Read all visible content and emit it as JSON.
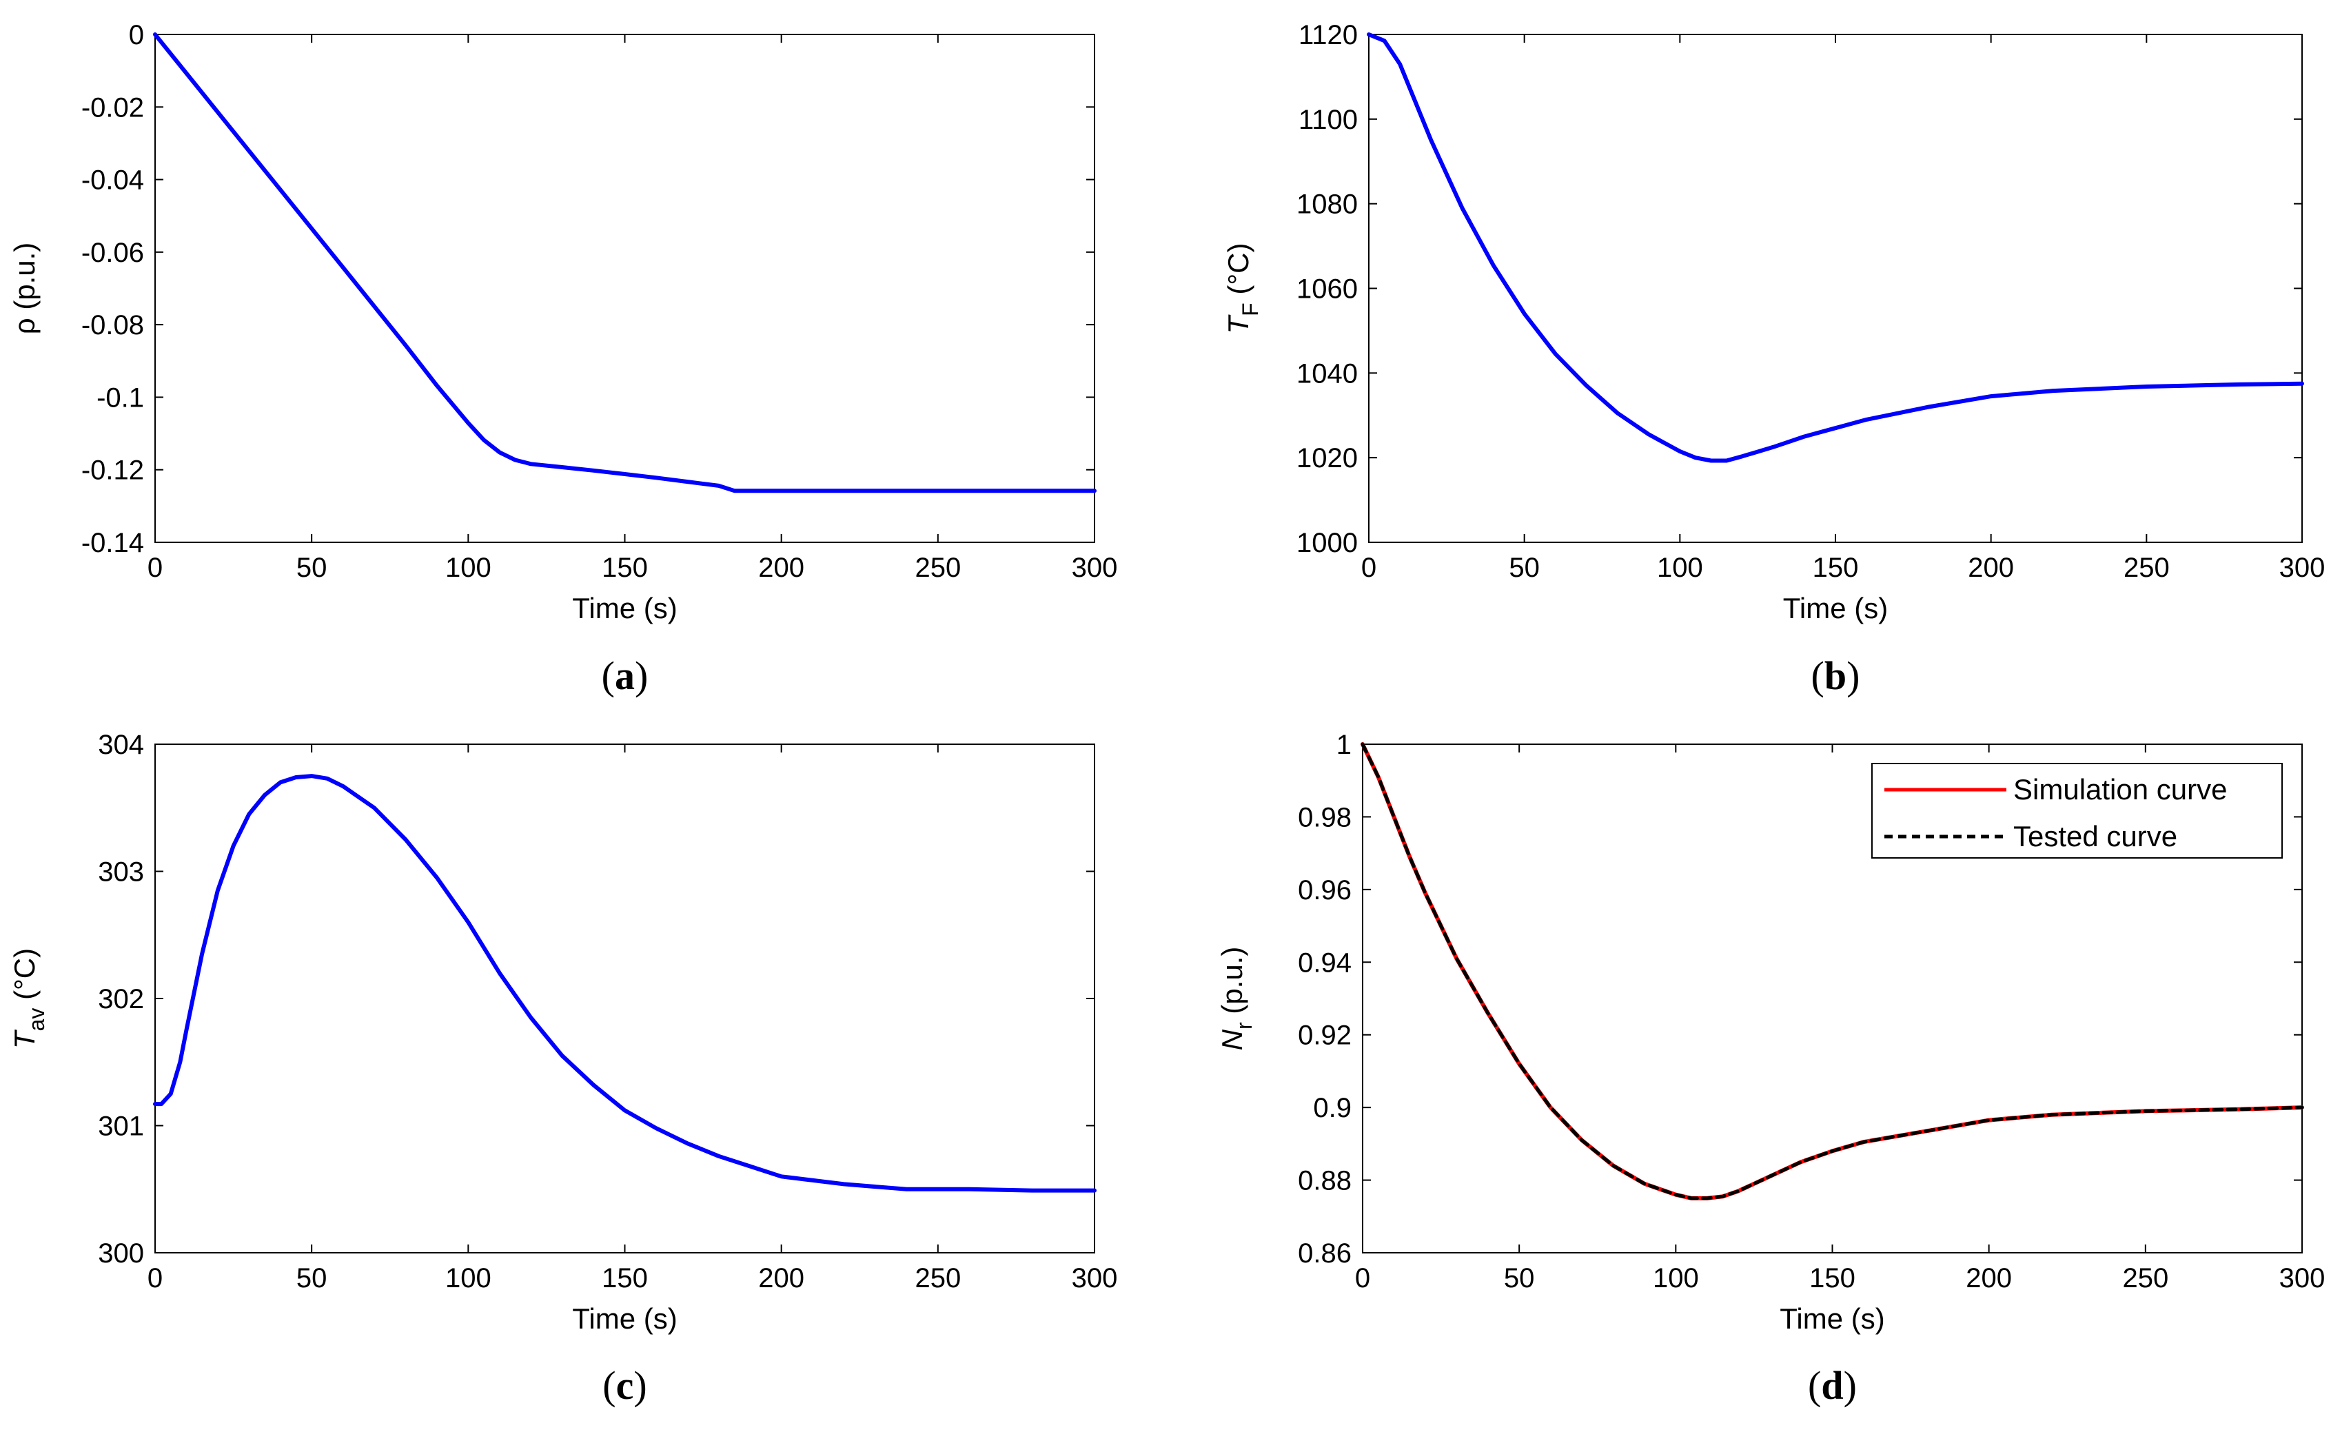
{
  "chart_data": [
    {
      "id": "a",
      "type": "line",
      "caption": "a",
      "xlabel": "Time (s)",
      "ylabel": "ρ (p.u.)",
      "xlim": [
        0,
        300
      ],
      "ylim": [
        -0.14,
        0
      ],
      "xticks": [
        "0",
        "50",
        "100",
        "150",
        "200",
        "250",
        "300"
      ],
      "yticks": [
        "0",
        "-0.02",
        "-0.04",
        "-0.06",
        "-0.08",
        "-0.1",
        "-0.12",
        "-0.14"
      ],
      "series": [
        {
          "name": "ρ",
          "color": "#0000ff",
          "style": "solid",
          "x": [
            0,
            20,
            40,
            60,
            80,
            90,
            100,
            105,
            110,
            115,
            120,
            130,
            140,
            150,
            160,
            170,
            180,
            185,
            200,
            250,
            300
          ],
          "y": [
            0,
            -0.0214,
            -0.0428,
            -0.0642,
            -0.0857,
            -0.0968,
            -0.1071,
            -0.1118,
            -0.1152,
            -0.1173,
            -0.1184,
            -0.1193,
            -0.1202,
            -0.1212,
            -0.1222,
            -0.1233,
            -0.1244,
            -0.1258,
            -0.1258,
            -0.1258,
            -0.1258
          ]
        }
      ]
    },
    {
      "id": "b",
      "type": "line",
      "caption": "b",
      "xlabel": "Time (s)",
      "ylabel": {
        "main": "T",
        "sub": "F",
        "unit": " (°C)"
      },
      "xlim": [
        0,
        300
      ],
      "ylim": [
        1000,
        1120
      ],
      "xticks": [
        "0",
        "50",
        "100",
        "150",
        "200",
        "250",
        "300"
      ],
      "yticks": [
        "1120",
        "1100",
        "1080",
        "1060",
        "1040",
        "1020",
        "1000"
      ],
      "series": [
        {
          "name": "TF",
          "color": "#0000ff",
          "style": "solid",
          "x": [
            0,
            5,
            10,
            15,
            20,
            30,
            40,
            50,
            60,
            70,
            80,
            90,
            100,
            105,
            110,
            115,
            120,
            130,
            140,
            150,
            160,
            180,
            200,
            220,
            250,
            280,
            300
          ],
          "y": [
            1120,
            1118.5,
            1113,
            1104,
            1095,
            1079,
            1065.5,
            1054,
            1044.5,
            1037,
            1030.5,
            1025.5,
            1021.5,
            1020,
            1019.3,
            1019.3,
            1020.3,
            1022.5,
            1025,
            1027,
            1029,
            1032,
            1034.5,
            1035.8,
            1036.8,
            1037.3,
            1037.5
          ]
        }
      ]
    },
    {
      "id": "c",
      "type": "line",
      "caption": "c",
      "xlabel": "Time (s)",
      "ylabel": {
        "main": "T",
        "sub": "av",
        "unit": " (°C)"
      },
      "xlim": [
        0,
        300
      ],
      "ylim": [
        300,
        304
      ],
      "xticks": [
        "0",
        "50",
        "100",
        "150",
        "200",
        "250",
        "300"
      ],
      "yticks": [
        "304",
        "303",
        "302",
        "301",
        "300"
      ],
      "series": [
        {
          "name": "Tav",
          "color": "#0000ff",
          "style": "solid",
          "x": [
            0,
            2,
            5,
            8,
            10,
            15,
            20,
            25,
            30,
            35,
            40,
            45,
            50,
            55,
            60,
            70,
            80,
            90,
            100,
            110,
            120,
            130,
            140,
            150,
            160,
            170,
            180,
            190,
            200,
            220,
            240,
            260,
            280,
            300
          ],
          "y": [
            301.17,
            301.17,
            301.25,
            301.5,
            301.75,
            302.35,
            302.85,
            303.2,
            303.45,
            303.6,
            303.7,
            303.74,
            303.75,
            303.73,
            303.67,
            303.5,
            303.25,
            302.95,
            302.6,
            302.2,
            301.85,
            301.55,
            301.32,
            301.12,
            300.98,
            300.86,
            300.76,
            300.68,
            300.6,
            300.54,
            300.5,
            300.5,
            300.49,
            300.49
          ]
        }
      ]
    },
    {
      "id": "d",
      "type": "line",
      "caption": "d",
      "xlabel": "Time (s)",
      "ylabel": {
        "main": "N",
        "sub": "r",
        "unit": " (p.u.)"
      },
      "xlim": [
        0,
        300
      ],
      "ylim": [
        0.86,
        1
      ],
      "xticks": [
        "0",
        "50",
        "100",
        "150",
        "200",
        "250",
        "300"
      ],
      "yticks": [
        "1",
        "0.98",
        "0.96",
        "0.94",
        "0.92",
        "0.9",
        "0.88",
        "0.86"
      ],
      "legend": [
        "Simulation curve",
        "Tested curve"
      ],
      "series": [
        {
          "name": "Simulation curve",
          "color": "#ff0000",
          "style": "solid",
          "x": [
            0,
            5,
            10,
            15,
            20,
            30,
            40,
            50,
            60,
            70,
            80,
            90,
            100,
            105,
            110,
            115,
            120,
            130,
            140,
            150,
            160,
            180,
            200,
            220,
            250,
            280,
            300
          ],
          "y": [
            1,
            0.991,
            0.98,
            0.969,
            0.959,
            0.941,
            0.926,
            0.912,
            0.9,
            0.891,
            0.884,
            0.879,
            0.876,
            0.875,
            0.875,
            0.8755,
            0.877,
            0.881,
            0.885,
            0.888,
            0.8905,
            0.8935,
            0.8965,
            0.898,
            0.899,
            0.8995,
            0.9
          ]
        },
        {
          "name": "Tested curve",
          "color": "#000000",
          "style": "dashed",
          "x": [
            0,
            5,
            10,
            15,
            20,
            30,
            40,
            50,
            60,
            70,
            80,
            90,
            100,
            105,
            110,
            115,
            120,
            130,
            140,
            150,
            160,
            180,
            200,
            220,
            250,
            280,
            300
          ],
          "y": [
            1,
            0.991,
            0.98,
            0.969,
            0.959,
            0.941,
            0.926,
            0.912,
            0.9,
            0.891,
            0.884,
            0.879,
            0.876,
            0.875,
            0.875,
            0.8755,
            0.877,
            0.881,
            0.885,
            0.888,
            0.8905,
            0.8935,
            0.8965,
            0.898,
            0.899,
            0.8995,
            0.9
          ]
        }
      ]
    }
  ]
}
